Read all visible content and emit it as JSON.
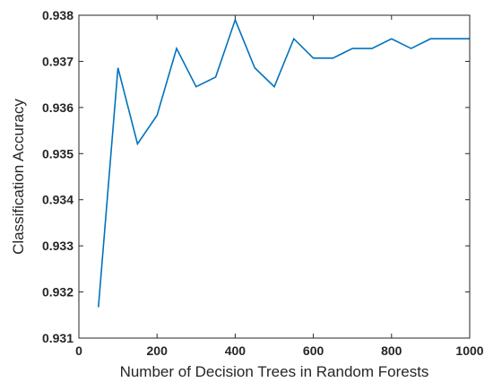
{
  "chart_data": {
    "type": "line",
    "title": "",
    "xlabel": "Number of Decision Trees in Random Forests",
    "ylabel": "Classification Accuracy",
    "xlim": [
      0,
      1000
    ],
    "ylim": [
      0.931,
      0.938
    ],
    "xticks": [
      0,
      200,
      400,
      600,
      800,
      1000
    ],
    "xtick_labels": [
      "0",
      "200",
      "400",
      "600",
      "800",
      "1000"
    ],
    "yticks": [
      0.931,
      0.932,
      0.933,
      0.934,
      0.935,
      0.936,
      0.937,
      0.938
    ],
    "ytick_labels": [
      "0.931",
      "0.932",
      "0.933",
      "0.934",
      "0.935",
      "0.936",
      "0.937",
      "0.938"
    ],
    "grid": false,
    "line_color": "#0072bd",
    "series": [
      {
        "x": [
          50,
          100,
          150,
          200,
          250,
          300,
          350,
          400,
          450,
          500,
          550,
          600,
          650,
          700,
          750,
          800,
          850,
          900,
          950,
          1000
        ],
        "y": [
          0.93167,
          0.93686,
          0.93521,
          0.93583,
          0.93728,
          0.93645,
          0.93666,
          0.9379,
          0.93686,
          0.93645,
          0.93749,
          0.93707,
          0.93707,
          0.93728,
          0.93728,
          0.93749,
          0.93728,
          0.93749,
          0.93749,
          0.93749
        ]
      }
    ]
  }
}
